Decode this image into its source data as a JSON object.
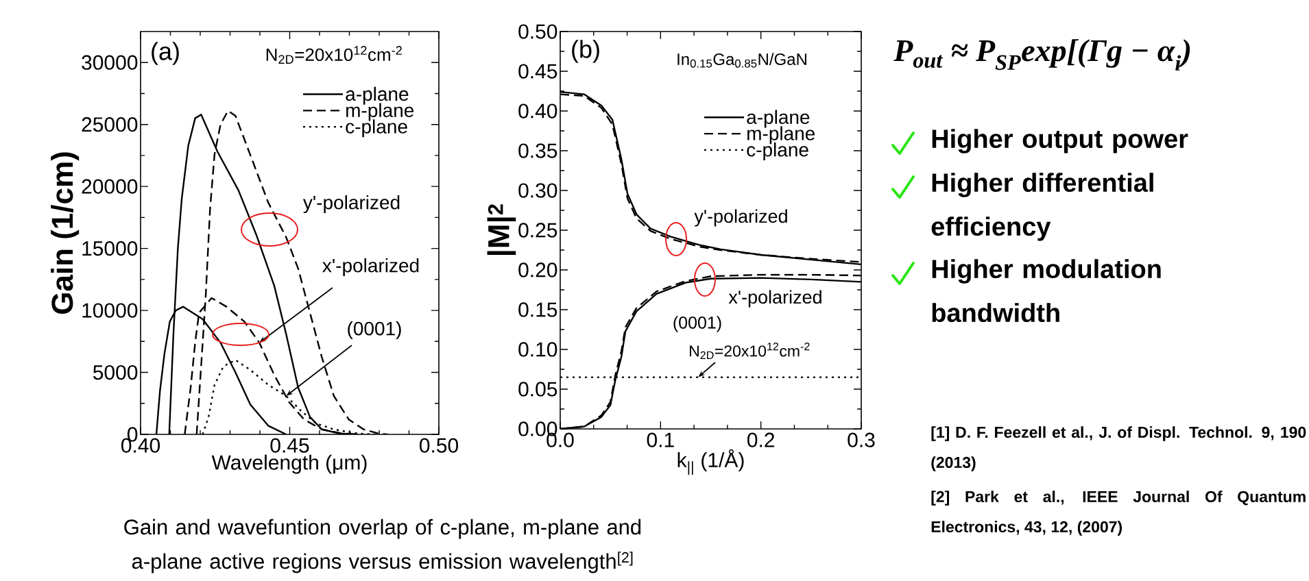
{
  "chart_data": [
    {
      "type": "line",
      "xlabel": "Wavelength (μm)",
      "ylabel": "Gain (1/cm)",
      "xlim": [
        0.4,
        0.5
      ],
      "ylim": [
        0,
        32500
      ],
      "xticks": [
        {
          "value": 0.4,
          "label": "0.40"
        },
        {
          "value": 0.45,
          "label": "0.45"
        },
        {
          "value": 0.5,
          "label": "0.50"
        }
      ],
      "yticks": [
        0,
        5000,
        10000,
        15000,
        20000,
        25000,
        30000
      ],
      "legend": "top right",
      "annotations": [
        "(a)",
        "N$_{2D}$=20x10$^{12}$cm$^{-2}$",
        "y'-polarized",
        {
          "text": "x'-polarized",
          "x": 0.4398,
          "y": 7400
        },
        {
          "text": "(0001)",
          "x": 0.4488,
          "y": 3100
        }
      ],
      "series": [
        {
          "name": "a-plane",
          "color": "#000000",
          "line_style": "solid",
          "x": [
            0.4096,
            0.411,
            0.4125,
            0.4138,
            0.416,
            0.4183,
            0.4203,
            0.4258,
            0.4328,
            0.4388,
            0.4448,
            0.4488,
            0.4528,
            0.4568,
            0.4608,
            0.4668,
            0.4728
          ],
          "values": [
            0,
            8000,
            15000,
            19000,
            23300,
            25500,
            25800,
            22800,
            19700,
            16100,
            12000,
            8100,
            3800,
            1400,
            400,
            70,
            0
          ]
        },
        {
          "name": "m-plane",
          "color": "#000000",
          "line_style": "dashed",
          "x": [
            0.4188,
            0.4218,
            0.4233,
            0.4248,
            0.4268,
            0.4293,
            0.4318,
            0.4378,
            0.4428,
            0.4488,
            0.4528,
            0.4568,
            0.4608,
            0.4648,
            0.4698,
            0.4748,
            0.4798,
            0.4828
          ],
          "values": [
            0,
            11000,
            18200,
            22600,
            25000,
            26100,
            25700,
            21900,
            18700,
            15900,
            13400,
            9800,
            6200,
            3100,
            1200,
            400,
            70,
            0
          ]
        },
        {
          "name": "c-plane",
          "color": "#000000",
          "line_style": "dotted",
          "x": [
            0.4208,
            0.4228,
            0.4248,
            0.4278,
            0.4318,
            0.4368,
            0.4428,
            0.4488,
            0.4538,
            0.4588,
            0.4648,
            0.4728,
            0.4788
          ],
          "values": [
            0,
            1400,
            4000,
            5500,
            6000,
            5200,
            4000,
            3100,
            1900,
            900,
            400,
            70,
            0
          ]
        },
        {
          "color": "#000000",
          "line_style": "solid",
          "x": [
            0.4053,
            0.4065,
            0.408,
            0.4098,
            0.4118,
            0.4143,
            0.4208,
            0.4268,
            0.4318,
            0.4368,
            0.4428,
            0.4488
          ],
          "values": [
            0,
            3500,
            6500,
            9100,
            10000,
            10300,
            9300,
            7400,
            5000,
            2400,
            700,
            0
          ]
        },
        {
          "color": "#000000",
          "line_style": "dashed",
          "x": [
            0.4148,
            0.4168,
            0.4183,
            0.4196,
            0.4238,
            0.4288,
            0.4348,
            0.4398,
            0.4448,
            0.4498,
            0.4548,
            0.4608,
            0.4678,
            0.4728
          ],
          "values": [
            0,
            3800,
            7400,
            9800,
            11000,
            10300,
            9100,
            7400,
            4800,
            2600,
            1200,
            400,
            70,
            0
          ]
        }
      ]
    },
    {
      "type": "line",
      "xlabel": "k$_{||}$ (1/Å)",
      "ylabel": "|M|$^{2}$",
      "xlim": [
        0,
        0.3
      ],
      "ylim": [
        0,
        0.5
      ],
      "xticks": [
        {
          "value": 0,
          "label": "0.0"
        },
        0.1,
        0.2,
        0.3
      ],
      "yticks": [
        {
          "value": 0,
          "label": "0.00"
        },
        0.05,
        {
          "value": 0.1,
          "label": "0.10"
        },
        0.15,
        {
          "value": 0.2,
          "label": "0.20"
        },
        0.25,
        {
          "value": 0.3,
          "label": "0.30"
        },
        0.35,
        {
          "value": 0.4,
          "label": "0.40"
        },
        0.45,
        {
          "value": 0.5,
          "label": "0.50"
        }
      ],
      "legend": "top right",
      "annotations": [
        "(b)",
        "In$_{0.15}$Ga$_{0.85}$N/GaN",
        "y'-polarized",
        "x'-polarized",
        "(0001)",
        {
          "text": "N$_{2D}$=20x10$^{12}$cm$^{-2}$",
          "x": 0.1375,
          "y": 0.065
        }
      ],
      "series": [
        {
          "name": "a-plane",
          "color": "#000000",
          "line_style": "solid",
          "x": [
            0,
            0.024,
            0.041,
            0.052,
            0.061,
            0.067,
            0.076,
            0.09,
            0.11,
            0.14,
            0.16,
            0.2,
            0.25,
            0.3
          ],
          "values": [
            0.424,
            0.421,
            0.407,
            0.389,
            0.339,
            0.296,
            0.27,
            0.252,
            0.242,
            0.231,
            0.226,
            0.219,
            0.213,
            0.207
          ]
        },
        {
          "name": "m-plane",
          "color": "#000000",
          "line_style": "dashed",
          "x": [
            0,
            0.024,
            0.041,
            0.052,
            0.061,
            0.067,
            0.076,
            0.09,
            0.11,
            0.14,
            0.16,
            0.2,
            0.25,
            0.3
          ],
          "values": [
            0.421,
            0.419,
            0.404,
            0.383,
            0.333,
            0.29,
            0.265,
            0.249,
            0.239,
            0.229,
            0.225,
            0.219,
            0.214,
            0.21
          ]
        },
        {
          "name": "c-plane",
          "color": "#000000",
          "line_style": "dotted",
          "x": [
            0,
            0.3
          ],
          "values": [
            0.065,
            0.065
          ]
        },
        {
          "color": "#000000",
          "line_style": "solid",
          "x": [
            0,
            0.024,
            0.041,
            0.05,
            0.055,
            0.061,
            0.065,
            0.076,
            0.096,
            0.125,
            0.15,
            0.2,
            0.25,
            0.3
          ],
          "values": [
            0,
            0.003,
            0.015,
            0.03,
            0.062,
            0.091,
            0.123,
            0.148,
            0.17,
            0.184,
            0.189,
            0.19,
            0.188,
            0.185
          ]
        },
        {
          "color": "#000000",
          "line_style": "dashed",
          "x": [
            0,
            0.024,
            0.041,
            0.05,
            0.055,
            0.061,
            0.065,
            0.076,
            0.096,
            0.125,
            0.15,
            0.2,
            0.25,
            0.3
          ],
          "values": [
            0,
            0.003,
            0.017,
            0.034,
            0.068,
            0.098,
            0.128,
            0.152,
            0.173,
            0.186,
            0.192,
            0.194,
            0.194,
            0.193
          ]
        }
      ]
    },
    {
      "type": "other",
      "annotations": [
        "P$_{out}$ ≈ P$_{SP}$exp[(Γg − α$_{i}$)",
        "Higher output power",
        "Higher differential efficiency",
        "Higher modulation bandwidth",
        "[1] D. F. Feezell et al., J. of Displ. Technol. 9, 190 (2013)",
        "[2] Park et al., IEEE Journal Of Quantum Electronics, 43, 12, (2007)",
        "Gain and wavefuntion overlap of c-plane, m-plane and a-plane active regions versus emission wavelength$^{[2]}$"
      ]
    }
  ]
}
